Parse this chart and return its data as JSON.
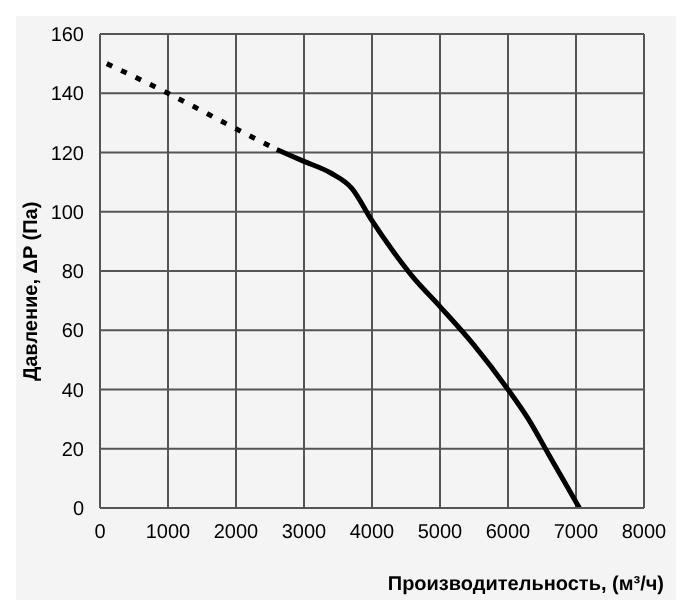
{
  "chart_data": {
    "type": "line",
    "xlabel": "Производительность, (м³/ч)",
    "ylabel": "Давление, ΔP (Па)",
    "xlim": [
      0,
      8000
    ],
    "xticks": [
      0,
      1000,
      2000,
      3000,
      4000,
      5000,
      6000,
      7000,
      8000
    ],
    "ylim": [
      0,
      160
    ],
    "yticks": [
      0,
      20,
      40,
      60,
      80,
      100,
      120,
      140,
      160
    ],
    "grid": true,
    "marker": "none",
    "series": [
      {
        "color": "#000000",
        "line_style": "dotted",
        "x": [
          100,
          1000,
          2000,
          2600
        ],
        "values": [
          150,
          140,
          128,
          121
        ]
      },
      {
        "color": "#000000",
        "line_style": "solid",
        "x": [
          2600,
          3000,
          3400,
          3700,
          4000,
          4300,
          4600,
          5000,
          5500,
          6000,
          6300,
          6600,
          7050
        ],
        "values": [
          121,
          117,
          113,
          108,
          97,
          87,
          78,
          68,
          55,
          40,
          30,
          18,
          0
        ]
      }
    ]
  }
}
